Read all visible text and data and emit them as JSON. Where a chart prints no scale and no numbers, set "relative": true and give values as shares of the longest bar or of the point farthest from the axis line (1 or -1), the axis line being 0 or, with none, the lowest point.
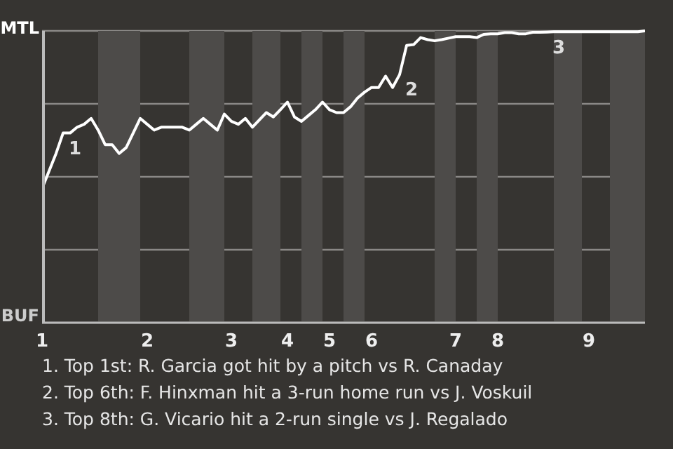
{
  "chart_data": {
    "type": "line",
    "relative": true,
    "categories": [
      "1",
      null,
      null,
      null,
      null,
      null,
      null,
      null,
      null,
      null,
      null,
      null,
      null,
      null,
      null,
      "2",
      null,
      null,
      null,
      null,
      null,
      null,
      null,
      null,
      null,
      null,
      null,
      "3",
      null,
      null,
      null,
      null,
      null,
      null,
      null,
      "4",
      null,
      null,
      null,
      null,
      null,
      "5",
      null,
      null,
      null,
      null,
      null,
      "6",
      null,
      null,
      null,
      null,
      null,
      null,
      null,
      null,
      null,
      null,
      null,
      "7",
      null,
      null,
      null,
      null,
      null,
      "8",
      null,
      null,
      null,
      null,
      null,
      null,
      null,
      null,
      null,
      null,
      null,
      null,
      "9",
      null,
      null,
      null,
      null,
      null,
      null,
      null,
      null
    ],
    "series": [
      {
        "color": "#ffffff",
        "values": [
          0.46,
          0.52,
          0.58,
          0.65,
          0.65,
          0.67,
          0.68,
          0.7,
          0.66,
          0.61,
          0.61,
          0.58,
          0.6,
          0.65,
          0.7,
          0.68,
          0.66,
          0.67,
          0.67,
          0.67,
          0.67,
          0.66,
          0.68,
          0.7,
          0.68,
          0.66,
          0.715,
          0.69,
          0.68,
          0.7,
          0.67,
          0.695,
          0.72,
          0.705,
          0.73,
          0.756,
          0.705,
          0.69,
          0.71,
          0.73,
          0.756,
          0.73,
          0.72,
          0.72,
          0.74,
          0.77,
          0.79,
          0.806,
          0.806,
          0.845,
          0.806,
          0.85,
          0.95,
          0.953,
          0.977,
          0.97,
          0.966,
          0.97,
          0.975,
          0.98,
          0.98,
          0.98,
          0.977,
          0.988,
          0.99,
          0.99,
          0.994,
          0.994,
          0.99,
          0.99,
          0.995,
          0.995,
          0.996,
          0.997,
          0.997,
          0.997,
          0.997,
          0.997,
          0.997,
          0.997,
          0.997,
          0.997,
          0.997,
          0.997,
          0.997,
          0.997,
          1
        ]
      }
    ],
    "grid": "y",
    "marker": "none",
    "line_style": "solid",
    "annotations": [
      "MTL",
      "BUF",
      "1",
      "2",
      "3",
      "1. Top 1st: R. Garcia got hit by a pitch vs R. Canaday",
      "2. Top 6th: F. Hinxman hit a 3-run home run vs J. Voskuil",
      "3. Top 8th: G. Vicario hit a 2-run single vs J. Regalado"
    ]
  }
}
